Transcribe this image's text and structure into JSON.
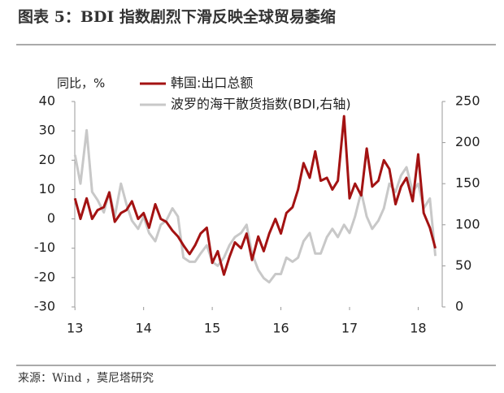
{
  "chart_data": {
    "type": "line",
    "title": "图表 5：BDI 指数剧烈下滑反映全球贸易萎缩",
    "y_label": "同比，%",
    "source": "来源：Wind ，莫尼塔研究",
    "legend": "upper left",
    "x": [
      13.0,
      13.08,
      13.17,
      13.25,
      13.33,
      13.42,
      13.5,
      13.58,
      13.67,
      13.75,
      13.83,
      13.92,
      14.0,
      14.08,
      14.17,
      14.25,
      14.33,
      14.42,
      14.5,
      14.58,
      14.67,
      14.75,
      14.83,
      14.92,
      15.0,
      15.08,
      15.17,
      15.25,
      15.33,
      15.42,
      15.5,
      15.58,
      15.67,
      15.75,
      15.83,
      15.92,
      16.0,
      16.08,
      16.17,
      16.25,
      16.33,
      16.42,
      16.5,
      16.58,
      16.67,
      16.75,
      16.83,
      16.92,
      17.0,
      17.08,
      17.17,
      17.25,
      17.33,
      17.42,
      17.5,
      17.58,
      17.67,
      17.75,
      17.83,
      17.92,
      18.0,
      18.08,
      18.17,
      18.25
    ],
    "xlim": [
      12.95,
      18.35
    ],
    "xticks": [
      13,
      14,
      15,
      16,
      17,
      18
    ],
    "ylim": [
      -30,
      40
    ],
    "yticks": [
      -30,
      -20,
      -10,
      0,
      10,
      20,
      30,
      40
    ],
    "y2lim": [
      0,
      250
    ],
    "y2ticks": [
      0,
      50,
      100,
      150,
      200,
      250
    ],
    "series": [
      {
        "name": "韩国:出口总额",
        "color": "#a31212",
        "values": [
          7,
          0,
          7,
          0,
          3,
          4,
          9,
          -1,
          2,
          3,
          6,
          0,
          2,
          -3,
          5,
          0,
          -1,
          -4,
          -6,
          -9,
          -12,
          -9,
          -5,
          -3,
          -15,
          -11,
          -19,
          -13,
          -8,
          -10,
          -5,
          -14,
          -6,
          -11,
          -5,
          0,
          -5,
          2,
          4,
          10,
          19,
          14,
          23,
          13,
          14,
          10,
          13,
          35,
          7,
          12,
          8,
          24,
          11,
          13,
          20,
          17,
          5,
          11,
          14,
          6,
          22,
          2,
          -3,
          -10
        ]
      },
      {
        "name": "波罗的海干散货指数(BDI,右轴)",
        "color": "#c8c8c8",
        "axis": "y2",
        "values": [
          185,
          150,
          215,
          140,
          130,
          115,
          140,
          110,
          150,
          125,
          105,
          95,
          110,
          90,
          80,
          100,
          105,
          120,
          110,
          60,
          55,
          55,
          65,
          75,
          55,
          50,
          60,
          75,
          85,
          90,
          100,
          65,
          45,
          35,
          30,
          40,
          40,
          60,
          55,
          60,
          80,
          90,
          65,
          65,
          85,
          95,
          85,
          100,
          90,
          110,
          140,
          110,
          95,
          105,
          120,
          150,
          140,
          160,
          170,
          140,
          150,
          120,
          132,
          62
        ]
      }
    ]
  }
}
